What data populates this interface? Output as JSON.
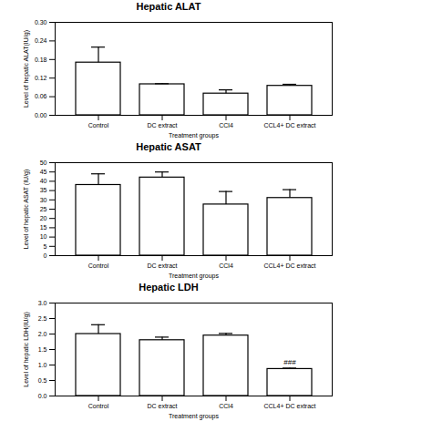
{
  "chart_data": [
    {
      "type": "bar",
      "title": "Hepatic ALAT",
      "x_label": "Treatment groups",
      "y_label": "Level of hepatic ALAT(IU/g)",
      "categories": [
        "Control",
        "DC extract",
        "CCl4",
        "CCL4+ DC extract"
      ],
      "values": [
        0.17,
        0.1,
        0.07,
        0.095
      ],
      "errors": [
        0.05,
        0.002,
        0.012,
        0.005
      ],
      "color": "#ffffff",
      "ylim": [
        0,
        0.3
      ],
      "yticks": [
        {
          "value": 0,
          "label": "0.00"
        },
        {
          "value": 0.06,
          "label": "0.06"
        },
        {
          "value": 0.12,
          "label": "0.12"
        },
        {
          "value": 0.18,
          "label": "0.18"
        },
        {
          "value": 0.24,
          "label": "0.24"
        },
        {
          "value": 0.3,
          "label": "0.30"
        }
      ],
      "grid": false
    },
    {
      "type": "bar",
      "title": "Hepatic ASAT",
      "x_label": "Treatment groups",
      "y_label": "Level of hepatic ASAT (IU/g)",
      "categories": [
        "Control",
        "DC extract",
        "CCl4",
        "CCL4+ DC extract"
      ],
      "values": [
        38,
        42,
        27.5,
        31
      ],
      "errors": [
        6,
        3,
        7,
        4.5
      ],
      "color": "#ffffff",
      "ylim": [
        0,
        50
      ],
      "yticks": [
        0,
        5,
        10,
        15,
        20,
        25,
        30,
        35,
        40,
        45,
        50
      ],
      "grid": false
    },
    {
      "type": "bar",
      "title": "Hepatic LDH",
      "x_label": "Treatment groups",
      "y_label": "Level of hepatic LDH(IU/g)",
      "categories": [
        "Control",
        "DC extract",
        "CCl4",
        "CCL4+ DC extract"
      ],
      "values": [
        2.0,
        1.8,
        1.95,
        0.87
      ],
      "errors": [
        0.3,
        0.1,
        0.07,
        0.03
      ],
      "color": "#ffffff",
      "annotations": [
        {
          "category": "CCL4+ DC extract",
          "text": "###"
        }
      ],
      "ylim": [
        0,
        3
      ],
      "yticks": [
        {
          "value": 0,
          "label": "0.0"
        },
        {
          "value": 0.5,
          "label": "0.5"
        },
        {
          "value": 1,
          "label": "1.0"
        },
        {
          "value": 1.5,
          "label": "1.5"
        },
        {
          "value": 2,
          "label": "2.0"
        },
        {
          "value": 2.5,
          "label": "2.5"
        },
        {
          "value": 3,
          "label": "3.0"
        }
      ],
      "grid": false
    }
  ]
}
